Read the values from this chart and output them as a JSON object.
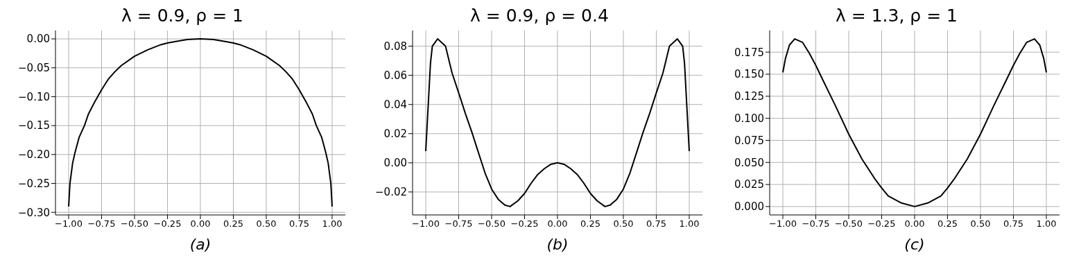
{
  "chart_data": [
    {
      "type": "line",
      "title": "λ = 0.9, ρ = 1",
      "xlabel": "(a)",
      "grid": true,
      "marker": "none",
      "line_style": "solid",
      "x": [
        -1,
        -0.99,
        -0.97,
        -0.95,
        -0.92,
        -0.88,
        -0.85,
        -0.8,
        -0.75,
        -0.7,
        -0.65,
        -0.6,
        -0.5,
        -0.4,
        -0.3,
        -0.25,
        -0.2,
        -0.1,
        0,
        0.1,
        0.2,
        0.25,
        0.3,
        0.4,
        0.5,
        0.6,
        0.65,
        0.7,
        0.75,
        0.8,
        0.85,
        0.88,
        0.92,
        0.95,
        0.97,
        0.99,
        1
      ],
      "series": [
        {
          "color": "#000000",
          "values": [
            -0.29,
            -0.25,
            -0.215,
            -0.195,
            -0.17,
            -0.15,
            -0.13,
            -0.108,
            -0.088,
            -0.07,
            -0.057,
            -0.046,
            -0.03,
            -0.019,
            -0.01,
            -0.007,
            -0.005,
            -0.001,
            0,
            -0.001,
            -0.005,
            -0.007,
            -0.01,
            -0.019,
            -0.03,
            -0.046,
            -0.057,
            -0.07,
            -0.088,
            -0.108,
            -0.13,
            -0.15,
            -0.17,
            -0.195,
            -0.215,
            -0.25,
            -0.29
          ]
        }
      ],
      "xlim": [
        -1.1,
        1.1
      ],
      "ylim": [
        -0.3045,
        0.0145
      ],
      "xticks": [
        {
          "value": -1,
          "label": "−1.00"
        },
        {
          "value": -0.75,
          "label": "−0.75"
        },
        {
          "value": -0.5,
          "label": "−0.50"
        },
        {
          "value": -0.25,
          "label": "−0.25"
        },
        {
          "value": 0,
          "label": "0.00"
        },
        {
          "value": 0.25,
          "label": "0.25"
        },
        {
          "value": 0.5,
          "label": "0.50"
        },
        {
          "value": 0.75,
          "label": "0.75"
        },
        {
          "value": 1,
          "label": "1.00"
        }
      ],
      "yticks": [
        {
          "value": -0.3,
          "label": "−0.30"
        },
        {
          "value": -0.25,
          "label": "−0.25"
        },
        {
          "value": -0.2,
          "label": "−0.20"
        },
        {
          "value": -0.15,
          "label": "−0.15"
        },
        {
          "value": -0.1,
          "label": "−0.10"
        },
        {
          "value": -0.05,
          "label": "−0.05"
        },
        {
          "value": 0,
          "label": "0.00"
        }
      ]
    },
    {
      "type": "line",
      "title": "λ = 0.9, ρ = 0.4",
      "xlabel": "(b)",
      "grid": true,
      "marker": "none",
      "line_style": "solid",
      "x": [
        -1,
        -0.964,
        -0.95,
        -0.91,
        -0.85,
        -0.8,
        -0.75,
        -0.7,
        -0.65,
        -0.6,
        -0.55,
        -0.5,
        -0.45,
        -0.4,
        -0.36,
        -0.3,
        -0.25,
        -0.2,
        -0.15,
        -0.1,
        -0.05,
        0,
        0.05,
        0.1,
        0.15,
        0.2,
        0.25,
        0.3,
        0.36,
        0.4,
        0.45,
        0.5,
        0.55,
        0.6,
        0.65,
        0.7,
        0.75,
        0.8,
        0.85,
        0.91,
        0.95,
        0.964,
        1
      ],
      "series": [
        {
          "color": "#000000",
          "values": [
            0.008,
            0.0685,
            0.08,
            0.085,
            0.08,
            0.0615,
            0.048,
            0.034,
            0.021,
            0.007,
            -0.007,
            -0.018,
            -0.025,
            -0.029,
            -0.03,
            -0.026,
            -0.021,
            -0.014,
            -0.008,
            -0.004,
            -0.001,
            0,
            -0.001,
            -0.004,
            -0.008,
            -0.014,
            -0.021,
            -0.026,
            -0.03,
            -0.029,
            -0.025,
            -0.018,
            -0.007,
            0.007,
            0.021,
            0.034,
            0.048,
            0.0615,
            0.08,
            0.085,
            0.08,
            0.0685,
            0.008
          ]
        }
      ],
      "xlim": [
        -1.1,
        1.1
      ],
      "ylim": [
        -0.03575,
        0.09075
      ],
      "xticks": [
        {
          "value": -1,
          "label": "−1.00"
        },
        {
          "value": -0.75,
          "label": "−0.75"
        },
        {
          "value": -0.5,
          "label": "−0.50"
        },
        {
          "value": -0.25,
          "label": "−0.25"
        },
        {
          "value": 0,
          "label": "0.00"
        },
        {
          "value": 0.25,
          "label": "0.25"
        },
        {
          "value": 0.5,
          "label": "0.50"
        },
        {
          "value": 0.75,
          "label": "0.75"
        },
        {
          "value": 1,
          "label": "1.00"
        }
      ],
      "yticks": [
        {
          "value": -0.02,
          "label": "−0.02"
        },
        {
          "value": 0,
          "label": "0.00"
        },
        {
          "value": 0.02,
          "label": "0.02"
        },
        {
          "value": 0.04,
          "label": "0.04"
        },
        {
          "value": 0.06,
          "label": "0.06"
        },
        {
          "value": 0.08,
          "label": "0.08"
        }
      ]
    },
    {
      "type": "line",
      "title": "λ = 1.3, ρ = 1",
      "xlabel": "(c)",
      "grid": true,
      "marker": "none",
      "line_style": "solid",
      "x": [
        -1,
        -0.98,
        -0.95,
        -0.91,
        -0.85,
        -0.8,
        -0.75,
        -0.7,
        -0.6,
        -0.5,
        -0.4,
        -0.3,
        -0.25,
        -0.2,
        -0.1,
        0,
        0.1,
        0.2,
        0.25,
        0.3,
        0.4,
        0.5,
        0.6,
        0.7,
        0.75,
        0.8,
        0.85,
        0.91,
        0.95,
        0.98,
        1
      ],
      "series": [
        {
          "color": "#000000",
          "values": [
            0.152,
            0.168,
            0.183,
            0.19,
            0.186,
            0.174,
            0.16,
            0.1445,
            0.114,
            0.082,
            0.054,
            0.031,
            0.021,
            0.012,
            0.004,
            0,
            0.004,
            0.012,
            0.021,
            0.031,
            0.054,
            0.082,
            0.114,
            0.1445,
            0.16,
            0.174,
            0.186,
            0.19,
            0.183,
            0.168,
            0.152
          ]
        }
      ],
      "xlim": [
        -1.1,
        1.1
      ],
      "ylim": [
        -0.0095,
        0.1995
      ],
      "xticks": [
        {
          "value": -1,
          "label": "−1.00"
        },
        {
          "value": -0.75,
          "label": "−0.75"
        },
        {
          "value": -0.5,
          "label": "−0.50"
        },
        {
          "value": -0.25,
          "label": "−0.25"
        },
        {
          "value": 0,
          "label": "0.00"
        },
        {
          "value": 0.25,
          "label": "0.25"
        },
        {
          "value": 0.5,
          "label": "0.50"
        },
        {
          "value": 0.75,
          "label": "0.75"
        },
        {
          "value": 1,
          "label": "1.00"
        }
      ],
      "yticks": [
        {
          "value": 0,
          "label": "0.000"
        },
        {
          "value": 0.025,
          "label": "0.025"
        },
        {
          "value": 0.05,
          "label": "0.050"
        },
        {
          "value": 0.075,
          "label": "0.075"
        },
        {
          "value": 0.1,
          "label": "0.100"
        },
        {
          "value": 0.125,
          "label": "0.125"
        },
        {
          "value": 0.15,
          "label": "0.150"
        },
        {
          "value": 0.175,
          "label": "0.175"
        }
      ]
    }
  ]
}
